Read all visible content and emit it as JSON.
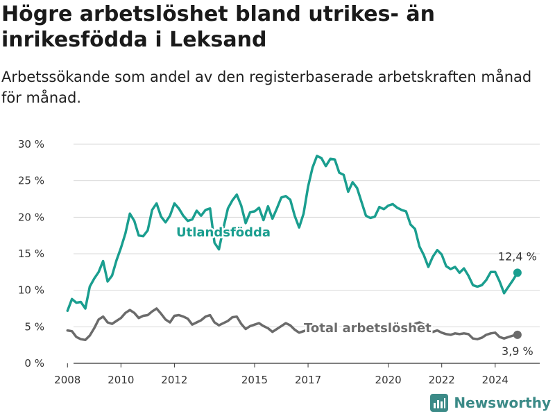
{
  "header": {
    "title": "Högre arbetslöshet bland utrikes- än inrikesfödda i Leksand",
    "subtitle": "Arbetssökande som andel av den registerbaserade arbetskraften månad för månad."
  },
  "brand": {
    "name": "Newsworthy",
    "icon": "bar-chart-logo-icon"
  },
  "chart_data": {
    "type": "line",
    "ylim": [
      0,
      30
    ],
    "yticks": [
      0,
      5,
      10,
      15,
      20,
      25,
      30
    ],
    "ytick_labels": [
      "0 %",
      "5 %",
      "10 %",
      "15 %",
      "20 %",
      "25 %",
      "30 %"
    ],
    "xlim": [
      "2007-07",
      "2025-09"
    ],
    "xticks": [
      "2008-01",
      "2010-01",
      "2012-01",
      "2015-01",
      "2017-01",
      "2020-01",
      "2022-01",
      "2024-01"
    ],
    "xtick_labels": [
      "2008",
      "2010",
      "2012",
      "2015",
      "2017",
      "2020",
      "2022",
      "2024"
    ],
    "grid": "horizontal",
    "series": [
      {
        "name": "Utlandsfödda",
        "color": "#1a9e8f",
        "end_label": "12,4 %",
        "points": [
          [
            "2008-01",
            7.2
          ],
          [
            "2008-03",
            8.8
          ],
          [
            "2008-05",
            8.3
          ],
          [
            "2008-07",
            8.4
          ],
          [
            "2008-09",
            7.5
          ],
          [
            "2008-11",
            10.5
          ],
          [
            "2009-01",
            11.6
          ],
          [
            "2009-03",
            12.5
          ],
          [
            "2009-05",
            14.0
          ],
          [
            "2009-07",
            11.2
          ],
          [
            "2009-09",
            12.0
          ],
          [
            "2009-11",
            14.1
          ],
          [
            "2010-01",
            15.8
          ],
          [
            "2010-03",
            17.8
          ],
          [
            "2010-05",
            20.5
          ],
          [
            "2010-07",
            19.5
          ],
          [
            "2010-09",
            17.5
          ],
          [
            "2010-11",
            17.4
          ],
          [
            "2011-01",
            18.2
          ],
          [
            "2011-03",
            21.0
          ],
          [
            "2011-05",
            21.9
          ],
          [
            "2011-07",
            20.1
          ],
          [
            "2011-09",
            19.3
          ],
          [
            "2011-11",
            20.2
          ],
          [
            "2012-01",
            21.9
          ],
          [
            "2012-03",
            21.2
          ],
          [
            "2012-05",
            20.2
          ],
          [
            "2012-07",
            19.5
          ],
          [
            "2012-09",
            19.7
          ],
          [
            "2012-11",
            20.9
          ],
          [
            "2013-01",
            20.2
          ],
          [
            "2013-03",
            21.0
          ],
          [
            "2013-05",
            21.2
          ],
          [
            "2013-07",
            16.5
          ],
          [
            "2013-09",
            15.6
          ],
          [
            "2013-11",
            18.5
          ],
          [
            "2014-01",
            21.2
          ],
          [
            "2014-03",
            22.3
          ],
          [
            "2014-05",
            23.1
          ],
          [
            "2014-07",
            21.6
          ],
          [
            "2014-09",
            19.2
          ],
          [
            "2014-11",
            20.7
          ],
          [
            "2015-01",
            20.8
          ],
          [
            "2015-03",
            21.3
          ],
          [
            "2015-05",
            19.6
          ],
          [
            "2015-07",
            21.5
          ],
          [
            "2015-09",
            19.8
          ],
          [
            "2015-11",
            21.2
          ],
          [
            "2016-01",
            22.7
          ],
          [
            "2016-03",
            22.9
          ],
          [
            "2016-05",
            22.4
          ],
          [
            "2016-07",
            20.2
          ],
          [
            "2016-09",
            18.6
          ],
          [
            "2016-11",
            20.5
          ],
          [
            "2017-01",
            24.2
          ],
          [
            "2017-03",
            26.8
          ],
          [
            "2017-05",
            28.4
          ],
          [
            "2017-07",
            28.1
          ],
          [
            "2017-09",
            27.0
          ],
          [
            "2017-11",
            28.0
          ],
          [
            "2018-01",
            27.9
          ],
          [
            "2018-03",
            26.1
          ],
          [
            "2018-05",
            25.8
          ],
          [
            "2018-07",
            23.5
          ],
          [
            "2018-09",
            24.8
          ],
          [
            "2018-11",
            24.0
          ],
          [
            "2019-01",
            22.1
          ],
          [
            "2019-03",
            20.2
          ],
          [
            "2019-05",
            19.9
          ],
          [
            "2019-07",
            20.1
          ],
          [
            "2019-09",
            21.4
          ],
          [
            "2019-11",
            21.1
          ],
          [
            "2020-01",
            21.6
          ],
          [
            "2020-03",
            21.8
          ],
          [
            "2020-05",
            21.3
          ],
          [
            "2020-07",
            21.0
          ],
          [
            "2020-09",
            20.8
          ],
          [
            "2020-11",
            19.0
          ],
          [
            "2021-01",
            18.4
          ],
          [
            "2021-03",
            16.0
          ],
          [
            "2021-05",
            14.8
          ],
          [
            "2021-07",
            13.2
          ],
          [
            "2021-09",
            14.6
          ],
          [
            "2021-11",
            15.5
          ],
          [
            "2022-01",
            14.9
          ],
          [
            "2022-03",
            13.3
          ],
          [
            "2022-05",
            12.9
          ],
          [
            "2022-07",
            13.2
          ],
          [
            "2022-09",
            12.4
          ],
          [
            "2022-11",
            13.0
          ],
          [
            "2023-01",
            12.0
          ],
          [
            "2023-03",
            10.7
          ],
          [
            "2023-05",
            10.5
          ],
          [
            "2023-07",
            10.7
          ],
          [
            "2023-09",
            11.4
          ],
          [
            "2023-11",
            12.5
          ],
          [
            "2024-01",
            12.5
          ],
          [
            "2024-03",
            11.2
          ],
          [
            "2024-05",
            9.6
          ],
          [
            "2024-07",
            10.5
          ],
          [
            "2024-09",
            11.4
          ],
          [
            "2024-11",
            12.4
          ]
        ]
      },
      {
        "name": "Total arbetslöshet",
        "color": "#6b6b6b",
        "end_label": "3,9 %",
        "points": [
          [
            "2008-01",
            4.5
          ],
          [
            "2008-03",
            4.4
          ],
          [
            "2008-05",
            3.6
          ],
          [
            "2008-07",
            3.3
          ],
          [
            "2008-09",
            3.2
          ],
          [
            "2008-11",
            3.8
          ],
          [
            "2009-01",
            4.8
          ],
          [
            "2009-03",
            6.0
          ],
          [
            "2009-05",
            6.4
          ],
          [
            "2009-07",
            5.6
          ],
          [
            "2009-09",
            5.4
          ],
          [
            "2009-11",
            5.8
          ],
          [
            "2010-01",
            6.2
          ],
          [
            "2010-03",
            6.9
          ],
          [
            "2010-05",
            7.3
          ],
          [
            "2010-07",
            6.9
          ],
          [
            "2010-09",
            6.2
          ],
          [
            "2010-11",
            6.5
          ],
          [
            "2011-01",
            6.6
          ],
          [
            "2011-03",
            7.1
          ],
          [
            "2011-05",
            7.5
          ],
          [
            "2011-07",
            6.8
          ],
          [
            "2011-09",
            6.0
          ],
          [
            "2011-11",
            5.6
          ],
          [
            "2012-01",
            6.5
          ],
          [
            "2012-03",
            6.6
          ],
          [
            "2012-05",
            6.4
          ],
          [
            "2012-07",
            6.1
          ],
          [
            "2012-09",
            5.3
          ],
          [
            "2012-11",
            5.6
          ],
          [
            "2013-01",
            5.9
          ],
          [
            "2013-03",
            6.4
          ],
          [
            "2013-05",
            6.6
          ],
          [
            "2013-07",
            5.6
          ],
          [
            "2013-09",
            5.2
          ],
          [
            "2013-11",
            5.5
          ],
          [
            "2014-01",
            5.8
          ],
          [
            "2014-03",
            6.3
          ],
          [
            "2014-05",
            6.4
          ],
          [
            "2014-07",
            5.4
          ],
          [
            "2014-09",
            4.7
          ],
          [
            "2014-11",
            5.1
          ],
          [
            "2015-01",
            5.3
          ],
          [
            "2015-03",
            5.5
          ],
          [
            "2015-05",
            5.1
          ],
          [
            "2015-07",
            4.8
          ],
          [
            "2015-09",
            4.3
          ],
          [
            "2015-11",
            4.7
          ],
          [
            "2016-01",
            5.1
          ],
          [
            "2016-03",
            5.5
          ],
          [
            "2016-05",
            5.2
          ],
          [
            "2016-07",
            4.6
          ],
          [
            "2016-09",
            4.2
          ],
          [
            "2016-11",
            4.4
          ],
          [
            "2017-01",
            4.6
          ],
          [
            "2021-01",
            5.4
          ],
          [
            "2021-03",
            5.6
          ],
          [
            "2021-05",
            5.3
          ],
          [
            "2021-07",
            4.6
          ],
          [
            "2021-09",
            4.3
          ],
          [
            "2021-11",
            4.5
          ],
          [
            "2022-01",
            4.2
          ],
          [
            "2022-03",
            4.0
          ],
          [
            "2022-05",
            3.9
          ],
          [
            "2022-07",
            4.1
          ],
          [
            "2022-09",
            4.0
          ],
          [
            "2022-11",
            4.1
          ],
          [
            "2023-01",
            4.0
          ],
          [
            "2023-03",
            3.4
          ],
          [
            "2023-05",
            3.3
          ],
          [
            "2023-07",
            3.5
          ],
          [
            "2023-09",
            3.9
          ],
          [
            "2023-11",
            4.1
          ],
          [
            "2024-01",
            4.2
          ],
          [
            "2024-03",
            3.6
          ],
          [
            "2024-05",
            3.4
          ],
          [
            "2024-07",
            3.6
          ],
          [
            "2024-09",
            3.8
          ],
          [
            "2024-11",
            3.9
          ]
        ]
      }
    ]
  }
}
